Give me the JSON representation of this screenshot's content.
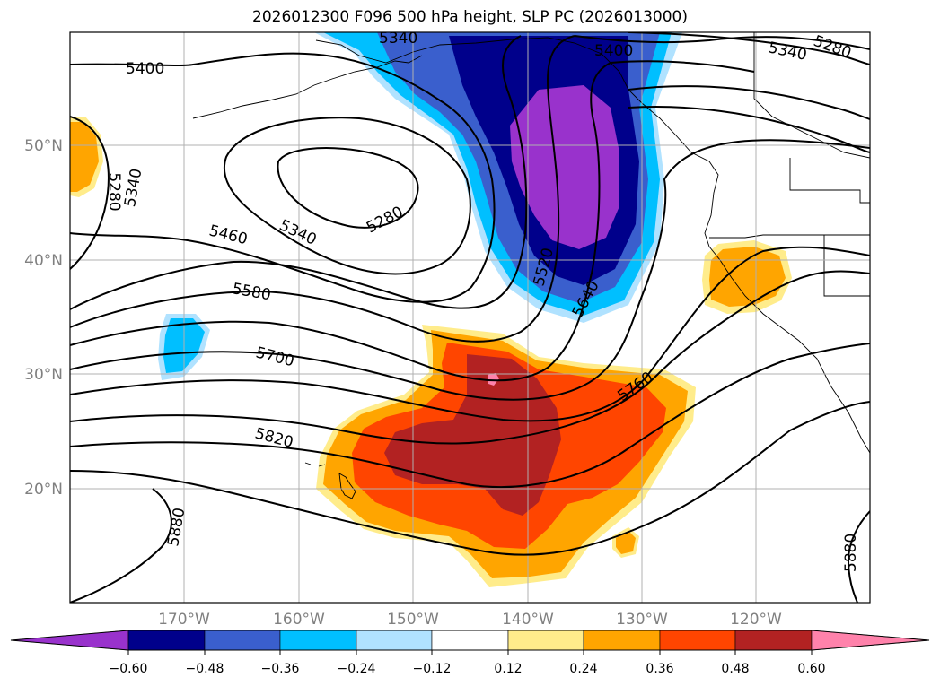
{
  "title": "2026012300 F096 500 hPa height, SLP PC (2026013000)",
  "map": {
    "lat_labels": [
      "50°N",
      "40°N",
      "30°N",
      "20°N"
    ],
    "lon_labels": [
      "170°W",
      "160°W",
      "150°W",
      "140°W",
      "130°W",
      "120°W"
    ],
    "contour_labels": [
      "5400",
      "5340",
      "5400",
      "5340",
      "5280",
      "5280",
      "5340",
      "5460",
      "5340",
      "5280",
      "5580",
      "5520",
      "5640",
      "5700",
      "5760",
      "5820",
      "5880",
      "5880"
    ],
    "gridline_color": "#b0b0b0",
    "tick_label_color": "#808080"
  },
  "colorbar": {
    "tick_labels": [
      "−0.60",
      "−0.48",
      "−0.36",
      "−0.24",
      "−0.12",
      "0.12",
      "0.24",
      "0.36",
      "0.48",
      "0.60"
    ],
    "colors": [
      "#9932cc",
      "#00008b",
      "#3a5fcd",
      "#00bfff",
      "#b0e2ff",
      "#ffffff",
      "#ffec8b",
      "#ffa500",
      "#ff4500",
      "#b22222",
      "#ff82ab"
    ]
  }
}
